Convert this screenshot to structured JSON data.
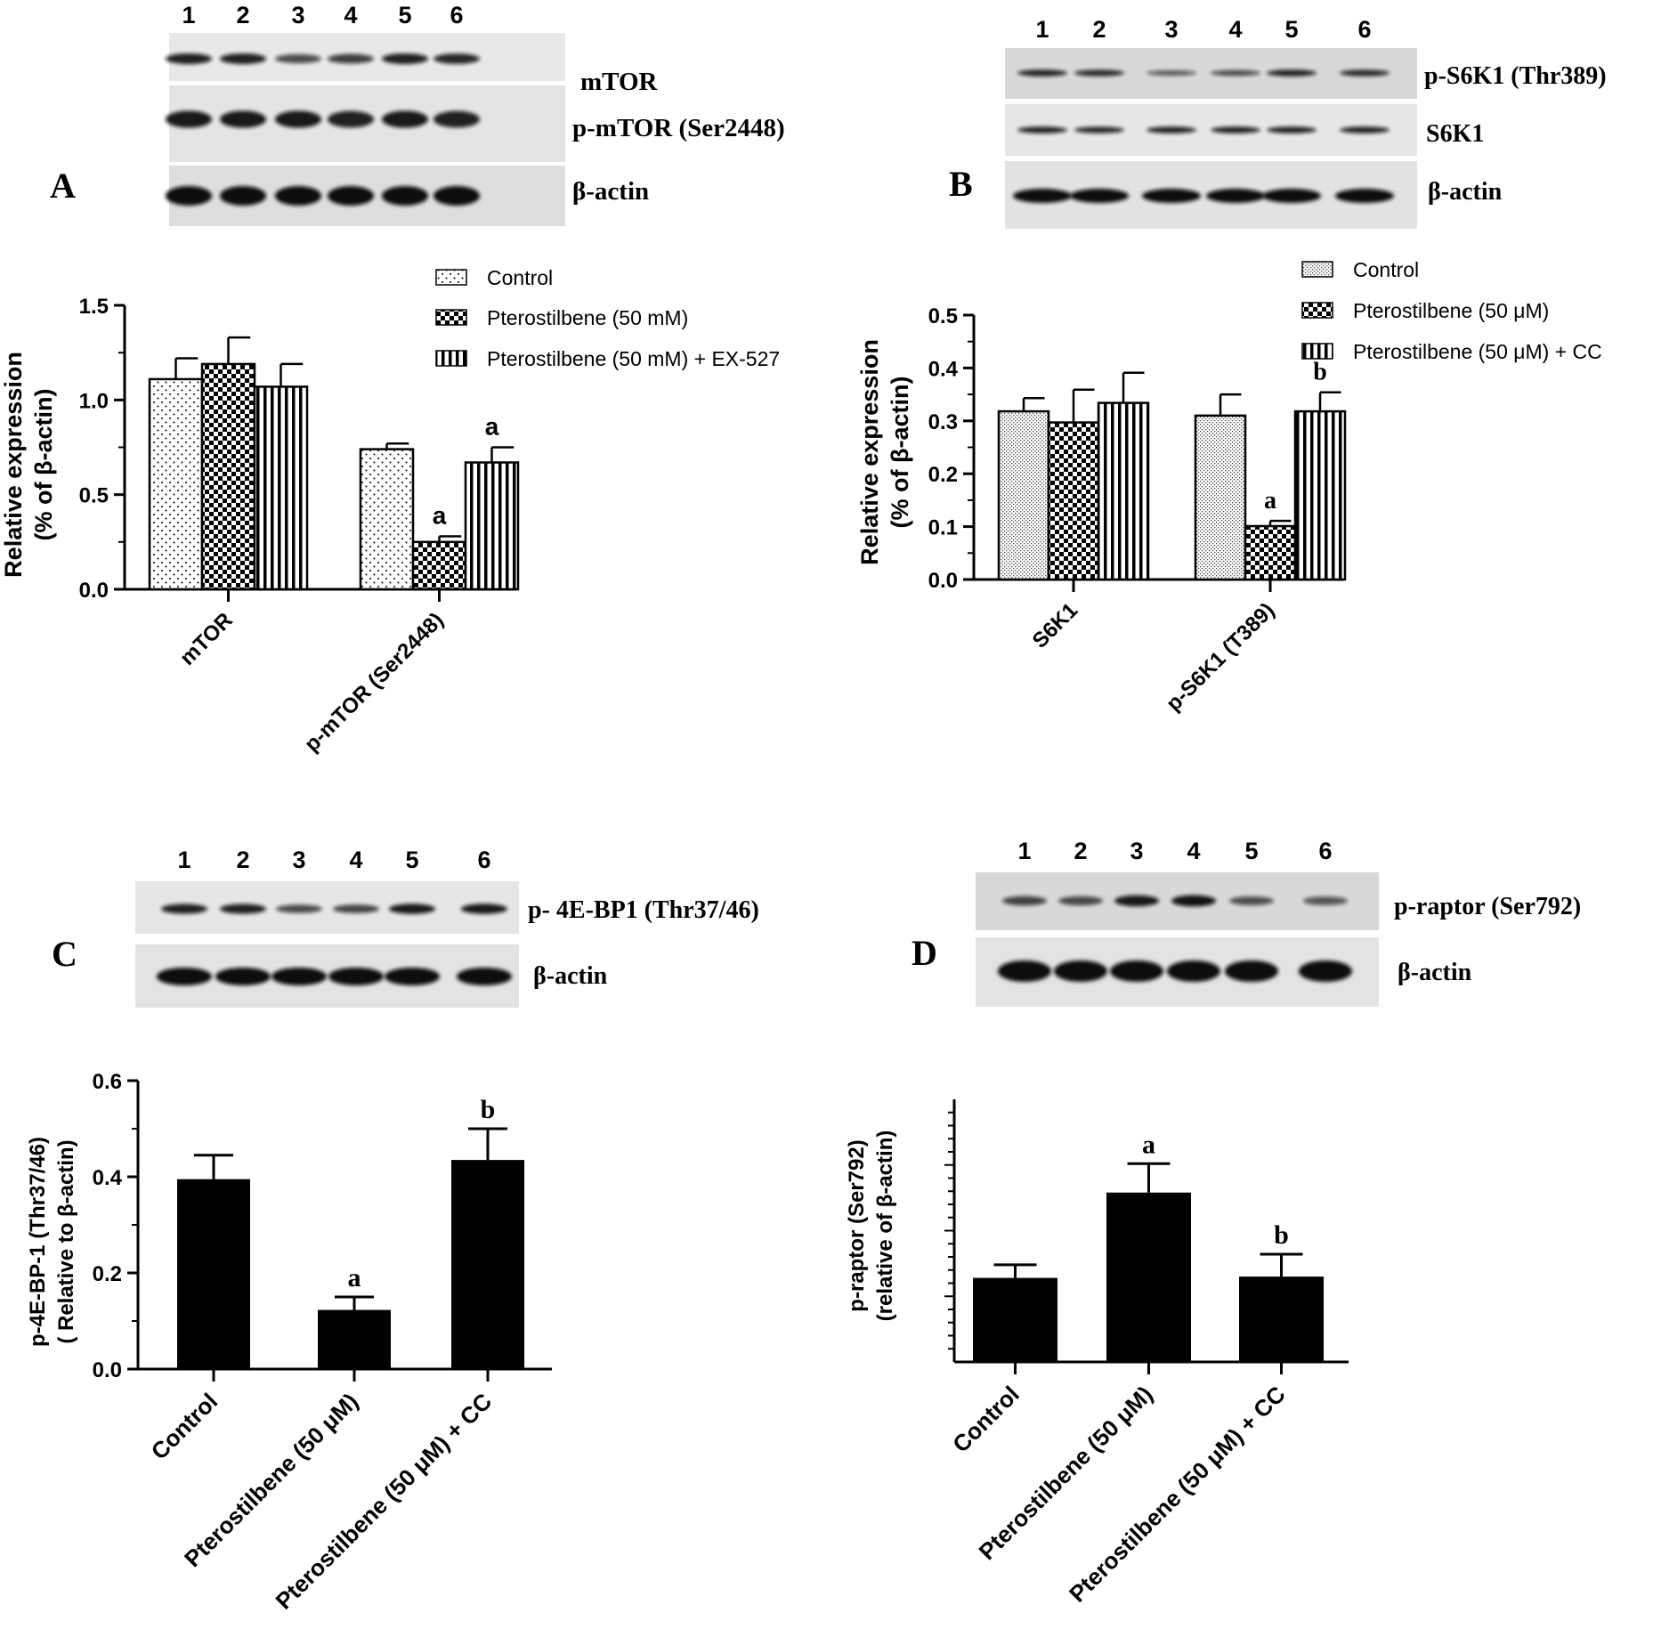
{
  "panel_letters": [
    "A",
    "B",
    "C",
    "D"
  ],
  "blots": {
    "A": {
      "lanes": [
        "1",
        "2",
        "3",
        "4",
        "5",
        "6"
      ],
      "rows": [
        {
          "label": "mTOR",
          "intensity": [
            0.85,
            0.85,
            0.55,
            0.65,
            0.85,
            0.8
          ]
        },
        {
          "label": "p-mTOR (Ser2448)",
          "intensity": [
            0.9,
            0.9,
            0.9,
            0.85,
            0.9,
            0.85
          ]
        },
        {
          "label": "β-actin",
          "intensity": [
            1,
            1,
            1,
            1,
            1,
            1
          ]
        }
      ]
    },
    "B": {
      "lanes": [
        "1",
        "2",
        "3",
        "4",
        "5",
        "6"
      ],
      "rows": [
        {
          "label": "p-S6K1 (Thr389)",
          "intensity": [
            0.85,
            0.8,
            0.45,
            0.55,
            0.85,
            0.8
          ]
        },
        {
          "label": "S6K1",
          "intensity": [
            0.85,
            0.8,
            0.85,
            0.85,
            0.85,
            0.85
          ]
        },
        {
          "label": "β-actin",
          "intensity": [
            1,
            1,
            1,
            1,
            1,
            1
          ]
        }
      ]
    },
    "C": {
      "lanes": [
        "1",
        "2",
        "3",
        "4",
        "5",
        "6"
      ],
      "rows": [
        {
          "label": "p- 4E-BP1 (Thr37/46)",
          "intensity": [
            0.85,
            0.85,
            0.55,
            0.6,
            0.9,
            0.9
          ]
        },
        {
          "label": "β-actin",
          "intensity": [
            1,
            1,
            1,
            1,
            1,
            1
          ]
        }
      ]
    },
    "D": {
      "lanes": [
        "1",
        "2",
        "3",
        "4",
        "5",
        "6"
      ],
      "rows": [
        {
          "label": "p-raptor (Ser792)",
          "intensity": [
            0.6,
            0.55,
            0.9,
            0.95,
            0.5,
            0.45
          ]
        },
        {
          "label": "β-actin",
          "intensity": [
            1,
            1,
            1,
            1,
            1,
            1
          ]
        }
      ]
    }
  },
  "chart_data": [
    {
      "panel": "A",
      "type": "bar",
      "ylabel": [
        "Relative expression",
        "(% of β-actin)"
      ],
      "ylim": [
        0,
        1.5
      ],
      "yticks": [
        "0.0",
        "0.5",
        "1.0",
        "1.5"
      ],
      "categories": [
        "mTOR",
        "p-mTOR (Ser2448)"
      ],
      "legend": [
        "Control",
        "Pterostilbene (50 mM)",
        "Pterostilbene (50 mM) + EX-527"
      ],
      "series": [
        {
          "name": "Control",
          "pattern": "dots",
          "values": [
            1.11,
            0.74
          ],
          "errors": [
            0.11,
            0.03
          ],
          "labels": [
            "",
            ""
          ]
        },
        {
          "name": "Pterostilbene (50 mM)",
          "pattern": "checker",
          "values": [
            1.19,
            0.25
          ],
          "errors": [
            0.14,
            0.03
          ],
          "labels": [
            "",
            "a"
          ]
        },
        {
          "name": "Pterostilbene (50 mM) + EX-527",
          "pattern": "vstripes",
          "values": [
            1.07,
            0.67
          ],
          "errors": [
            0.12,
            0.08
          ],
          "labels": [
            "",
            "a"
          ]
        }
      ]
    },
    {
      "panel": "B",
      "type": "bar",
      "ylabel": [
        "Relative expression",
        "(% of β-actin)"
      ],
      "ylim": [
        0,
        0.5
      ],
      "yticks": [
        "0.0",
        "0.1",
        "0.2",
        "0.3",
        "0.4",
        "0.5"
      ],
      "categories": [
        "S6K1",
        "p-S6K1 (T389)"
      ],
      "legend": [
        "Control",
        "Pterostilbene (50 μM)",
        "Pterostilbene (50 μM) + CC"
      ],
      "series": [
        {
          "name": "Control",
          "pattern": "fine",
          "values": [
            0.318,
            0.31
          ],
          "errors": [
            0.025,
            0.04
          ],
          "labels": [
            "",
            ""
          ]
        },
        {
          "name": "Pterostilbene (50 μM)",
          "pattern": "checker",
          "values": [
            0.297,
            0.101
          ],
          "errors": [
            0.062,
            0.01
          ],
          "labels": [
            "",
            "a"
          ]
        },
        {
          "name": "Pterostilbene (50 μM) + CC",
          "pattern": "vstripes",
          "values": [
            0.334,
            0.318
          ],
          "errors": [
            0.057,
            0.036
          ],
          "labels": [
            "",
            "b"
          ]
        }
      ]
    },
    {
      "panel": "C",
      "type": "bar",
      "ylabel": [
        "p-4E-BP-1 (Thr37/46)",
        "( Relative to β-actin)"
      ],
      "ylim": [
        0,
        0.6
      ],
      "yticks": [
        "0.0",
        "0.2",
        "0.4",
        "0.6"
      ],
      "categories": [
        "Control",
        "Pterostilbene (50 μM)",
        "Pterostilbene (50 μM) + CC"
      ],
      "values": [
        0.395,
        0.123,
        0.435
      ],
      "errors": [
        0.05,
        0.027,
        0.065
      ],
      "labels": [
        "",
        "a",
        "b"
      ]
    },
    {
      "panel": "D",
      "type": "bar",
      "ylabel": [
        "p-raptor (Ser792)",
        "(relative of β-actin)"
      ],
      "ylim": [
        0,
        1
      ],
      "yticks": [],
      "minor_ticks": 20,
      "categories": [
        "Control",
        "Pterostilbene (50 μM)",
        "Pterostilbene (50 μM) + CC"
      ],
      "values": [
        0.32,
        0.645,
        0.325
      ],
      "errors": [
        0.05,
        0.11,
        0.085
      ],
      "labels": [
        "",
        "a",
        "b"
      ]
    }
  ]
}
